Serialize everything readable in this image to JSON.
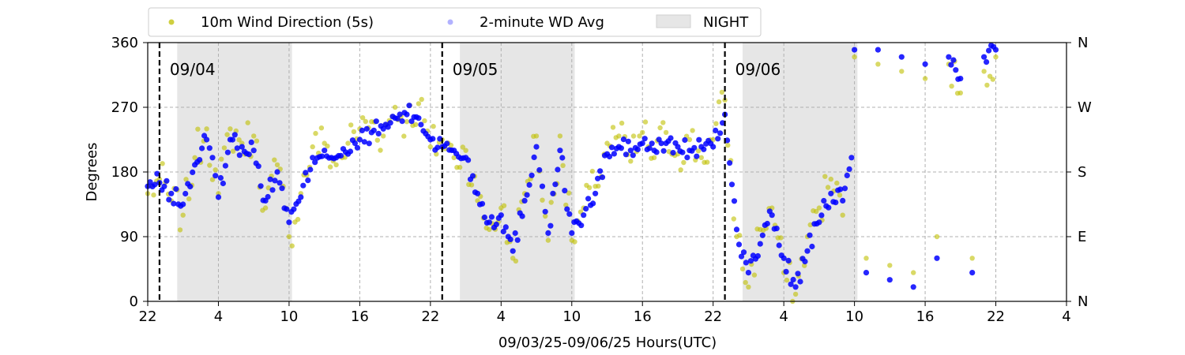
{
  "chart_data": {
    "type": "scatter",
    "xlabel": "09/03/25-09/06/25  Hours(UTC)",
    "ylabel": "Degrees",
    "x_domain": [
      "2025-09-03T22:00Z",
      "2025-09-07T04:00Z"
    ],
    "x_ticks": [
      {
        "t": "2025-09-03T22:00Z",
        "label": "22"
      },
      {
        "t": "2025-09-04T04:00Z",
        "label": "4"
      },
      {
        "t": "2025-09-04T10:00Z",
        "label": "10"
      },
      {
        "t": "2025-09-04T16:00Z",
        "label": "16"
      },
      {
        "t": "2025-09-04T22:00Z",
        "label": "22"
      },
      {
        "t": "2025-09-05T04:00Z",
        "label": "4"
      },
      {
        "t": "2025-09-05T10:00Z",
        "label": "10"
      },
      {
        "t": "2025-09-05T16:00Z",
        "label": "16"
      },
      {
        "t": "2025-09-05T22:00Z",
        "label": "22"
      },
      {
        "t": "2025-09-06T04:00Z",
        "label": "4"
      },
      {
        "t": "2025-09-06T10:00Z",
        "label": "10"
      },
      {
        "t": "2025-09-06T16:00Z",
        "label": "16"
      },
      {
        "t": "2025-09-06T22:00Z",
        "label": "22"
      },
      {
        "t": "2025-09-07T04:00Z",
        "label": "4"
      }
    ],
    "ylim": [
      0,
      360
    ],
    "y_ticks": [
      0,
      90,
      180,
      270,
      360
    ],
    "y2_ticks": [
      {
        "value": 0,
        "label": "N"
      },
      {
        "value": 90,
        "label": "E"
      },
      {
        "value": 180,
        "label": "S"
      },
      {
        "value": 270,
        "label": "W"
      },
      {
        "value": 360,
        "label": "N"
      }
    ],
    "grid": true,
    "legend": {
      "position": "top-left, above plot",
      "items": [
        {
          "label": "10m Wind Direction (5s)",
          "kind": "marker",
          "color": "#bfbf00"
        },
        {
          "label": "2-minute WD Avg",
          "kind": "marker",
          "color": "#0000ff"
        },
        {
          "label": "NIGHT",
          "kind": "patch",
          "color": "#e6e6e6"
        }
      ]
    },
    "night_periods": [
      {
        "start": "2025-09-04T00:30Z",
        "end": "2025-09-04T10:15Z"
      },
      {
        "start": "2025-09-05T00:30Z",
        "end": "2025-09-05T10:15Z"
      },
      {
        "start": "2025-09-06T00:30Z",
        "end": "2025-09-06T10:15Z"
      }
    ],
    "day_markers": [
      {
        "t": "2025-09-03T23:00Z",
        "label": "09/04"
      },
      {
        "t": "2025-09-04T23:00Z",
        "label": "09/05"
      },
      {
        "t": "2025-09-05T23:00Z",
        "label": "09/06"
      }
    ],
    "series": [
      {
        "name": "2-minute WD Avg",
        "color": "#0000ff",
        "points": [
          [
            "2025-09-03T22:00Z",
            160
          ],
          [
            "2025-09-03T23:00Z",
            165
          ],
          [
            "2025-09-04T00:00Z",
            150
          ],
          [
            "2025-09-04T01:00Z",
            135
          ],
          [
            "2025-09-04T02:00Z",
            190
          ],
          [
            "2025-09-04T03:00Z",
            225
          ],
          [
            "2025-09-04T03:30Z",
            200
          ],
          [
            "2025-09-04T04:00Z",
            145
          ],
          [
            "2025-09-04T05:00Z",
            225
          ],
          [
            "2025-09-04T06:00Z",
            215
          ],
          [
            "2025-09-04T07:00Z",
            210
          ],
          [
            "2025-09-04T08:00Z",
            140
          ],
          [
            "2025-09-04T09:00Z",
            180
          ],
          [
            "2025-09-04T10:00Z",
            110
          ],
          [
            "2025-09-04T11:00Z",
            145
          ],
          [
            "2025-09-04T12:00Z",
            200
          ],
          [
            "2025-09-04T13:00Z",
            210
          ],
          [
            "2025-09-04T14:00Z",
            200
          ],
          [
            "2025-09-04T15:00Z",
            205
          ],
          [
            "2025-09-04T16:00Z",
            225
          ],
          [
            "2025-09-04T17:00Z",
            235
          ],
          [
            "2025-09-04T18:00Z",
            240
          ],
          [
            "2025-09-04T19:00Z",
            255
          ],
          [
            "2025-09-04T20:00Z",
            260
          ],
          [
            "2025-09-04T21:00Z",
            255
          ],
          [
            "2025-09-04T22:00Z",
            225
          ],
          [
            "2025-09-04T23:00Z",
            215
          ],
          [
            "2025-09-05T00:00Z",
            210
          ],
          [
            "2025-09-05T01:00Z",
            200
          ],
          [
            "2025-09-05T02:00Z",
            150
          ],
          [
            "2025-09-05T03:00Z",
            110
          ],
          [
            "2025-09-05T04:00Z",
            120
          ],
          [
            "2025-09-05T05:00Z",
            70
          ],
          [
            "2025-09-05T06:00Z",
            140
          ],
          [
            "2025-09-05T07:00Z",
            215
          ],
          [
            "2025-09-05T07:30Z",
            160
          ],
          [
            "2025-09-05T08:00Z",
            95
          ],
          [
            "2025-09-05T09:00Z",
            210
          ],
          [
            "2025-09-05T10:00Z",
            95
          ],
          [
            "2025-09-05T11:00Z",
            120
          ],
          [
            "2025-09-05T12:00Z",
            150
          ],
          [
            "2025-09-05T13:00Z",
            205
          ],
          [
            "2025-09-05T14:00Z",
            215
          ],
          [
            "2025-09-05T15:00Z",
            210
          ],
          [
            "2025-09-05T16:00Z",
            220
          ],
          [
            "2025-09-05T17:00Z",
            210
          ],
          [
            "2025-09-05T18:00Z",
            220
          ],
          [
            "2025-09-05T19:00Z",
            215
          ],
          [
            "2025-09-05T20:00Z",
            210
          ],
          [
            "2025-09-05T21:00Z",
            215
          ],
          [
            "2025-09-05T22:00Z",
            215
          ],
          [
            "2025-09-05T23:00Z",
            260
          ],
          [
            "2025-09-06T00:00Z",
            100
          ],
          [
            "2025-09-06T01:00Z",
            40
          ],
          [
            "2025-09-06T02:00Z",
            80
          ],
          [
            "2025-09-06T03:00Z",
            120
          ],
          [
            "2025-09-06T04:00Z",
            60
          ],
          [
            "2025-09-06T05:00Z",
            20
          ],
          [
            "2025-09-06T06:00Z",
            70
          ],
          [
            "2025-09-06T07:00Z",
            110
          ],
          [
            "2025-09-06T08:00Z",
            150
          ],
          [
            "2025-09-06T09:00Z",
            140
          ],
          [
            "2025-09-06T09:45Z",
            200
          ],
          [
            "2025-09-06T10:00Z",
            350
          ],
          [
            "2025-09-06T11:00Z",
            40
          ],
          [
            "2025-09-06T12:00Z",
            350
          ],
          [
            "2025-09-06T13:00Z",
            30
          ],
          [
            "2025-09-06T14:00Z",
            340
          ],
          [
            "2025-09-06T15:00Z",
            20
          ],
          [
            "2025-09-06T16:00Z",
            330
          ],
          [
            "2025-09-06T17:00Z",
            60
          ],
          [
            "2025-09-06T18:00Z",
            340
          ],
          [
            "2025-09-06T19:00Z",
            310
          ],
          [
            "2025-09-06T20:00Z",
            40
          ],
          [
            "2025-09-06T21:00Z",
            340
          ],
          [
            "2025-09-06T22:00Z",
            350
          ]
        ]
      },
      {
        "name": "10m Wind Direction (5s)",
        "color": "#bfbf00",
        "points": [
          [
            "2025-09-03T22:00Z",
            150
          ],
          [
            "2025-09-03T23:00Z",
            170
          ],
          [
            "2025-09-04T00:00Z",
            140
          ],
          [
            "2025-09-04T01:00Z",
            120
          ],
          [
            "2025-09-04T02:00Z",
            200
          ],
          [
            "2025-09-04T03:00Z",
            240
          ],
          [
            "2025-09-04T04:00Z",
            150
          ],
          [
            "2025-09-04T05:00Z",
            240
          ],
          [
            "2025-09-04T06:00Z",
            220
          ],
          [
            "2025-09-04T07:00Z",
            230
          ],
          [
            "2025-09-04T08:00Z",
            130
          ],
          [
            "2025-09-04T09:00Z",
            190
          ],
          [
            "2025-09-04T10:00Z",
            90
          ],
          [
            "2025-09-04T11:00Z",
            150
          ],
          [
            "2025-09-04T12:00Z",
            215
          ],
          [
            "2025-09-04T13:00Z",
            220
          ],
          [
            "2025-09-04T14:00Z",
            190
          ],
          [
            "2025-09-04T15:00Z",
            220
          ],
          [
            "2025-09-04T16:00Z",
            240
          ],
          [
            "2025-09-04T17:00Z",
            250
          ],
          [
            "2025-09-04T18:00Z",
            230
          ],
          [
            "2025-09-04T19:00Z",
            270
          ],
          [
            "2025-09-04T20:00Z",
            250
          ],
          [
            "2025-09-04T21:00Z",
            275
          ],
          [
            "2025-09-04T22:00Z",
            215
          ],
          [
            "2025-09-04T23:00Z",
            225
          ],
          [
            "2025-09-05T00:00Z",
            200
          ],
          [
            "2025-09-05T01:00Z",
            210
          ],
          [
            "2025-09-05T02:00Z",
            140
          ],
          [
            "2025-09-05T03:00Z",
            100
          ],
          [
            "2025-09-05T04:00Z",
            130
          ],
          [
            "2025-09-05T05:00Z",
            60
          ],
          [
            "2025-09-05T06:00Z",
            150
          ],
          [
            "2025-09-05T07:00Z",
            230
          ],
          [
            "2025-09-05T08:00Z",
            85
          ],
          [
            "2025-09-05T09:00Z",
            230
          ],
          [
            "2025-09-05T10:00Z",
            85
          ],
          [
            "2025-09-05T11:00Z",
            130
          ],
          [
            "2025-09-05T12:00Z",
            160
          ],
          [
            "2025-09-05T13:00Z",
            220
          ],
          [
            "2025-09-05T14:00Z",
            230
          ],
          [
            "2025-09-05T15:00Z",
            195
          ],
          [
            "2025-09-05T16:00Z",
            235
          ],
          [
            "2025-09-05T17:00Z",
            200
          ],
          [
            "2025-09-05T18:00Z",
            235
          ],
          [
            "2025-09-05T19:00Z",
            205
          ],
          [
            "2025-09-05T20:00Z",
            225
          ],
          [
            "2025-09-05T21:00Z",
            200
          ],
          [
            "2025-09-05T22:00Z",
            225
          ],
          [
            "2025-09-05T23:00Z",
            280
          ],
          [
            "2025-09-06T00:00Z",
            90
          ],
          [
            "2025-09-06T01:00Z",
            20
          ],
          [
            "2025-09-06T02:00Z",
            100
          ],
          [
            "2025-09-06T03:00Z",
            130
          ],
          [
            "2025-09-06T04:00Z",
            40
          ],
          [
            "2025-09-06T05:00Z",
            10
          ],
          [
            "2025-09-06T06:00Z",
            90
          ],
          [
            "2025-09-06T07:00Z",
            130
          ],
          [
            "2025-09-06T08:00Z",
            170
          ],
          [
            "2025-09-06T09:00Z",
            120
          ],
          [
            "2025-09-06T10:00Z",
            340
          ],
          [
            "2025-09-06T11:00Z",
            60
          ],
          [
            "2025-09-06T12:00Z",
            330
          ],
          [
            "2025-09-06T13:00Z",
            50
          ],
          [
            "2025-09-06T14:00Z",
            320
          ],
          [
            "2025-09-06T15:00Z",
            40
          ],
          [
            "2025-09-06T16:00Z",
            310
          ],
          [
            "2025-09-06T17:00Z",
            90
          ],
          [
            "2025-09-06T18:00Z",
            330
          ],
          [
            "2025-09-06T19:00Z",
            290
          ],
          [
            "2025-09-06T20:00Z",
            60
          ],
          [
            "2025-09-06T21:00Z",
            320
          ],
          [
            "2025-09-06T22:00Z",
            340
          ]
        ]
      }
    ]
  }
}
